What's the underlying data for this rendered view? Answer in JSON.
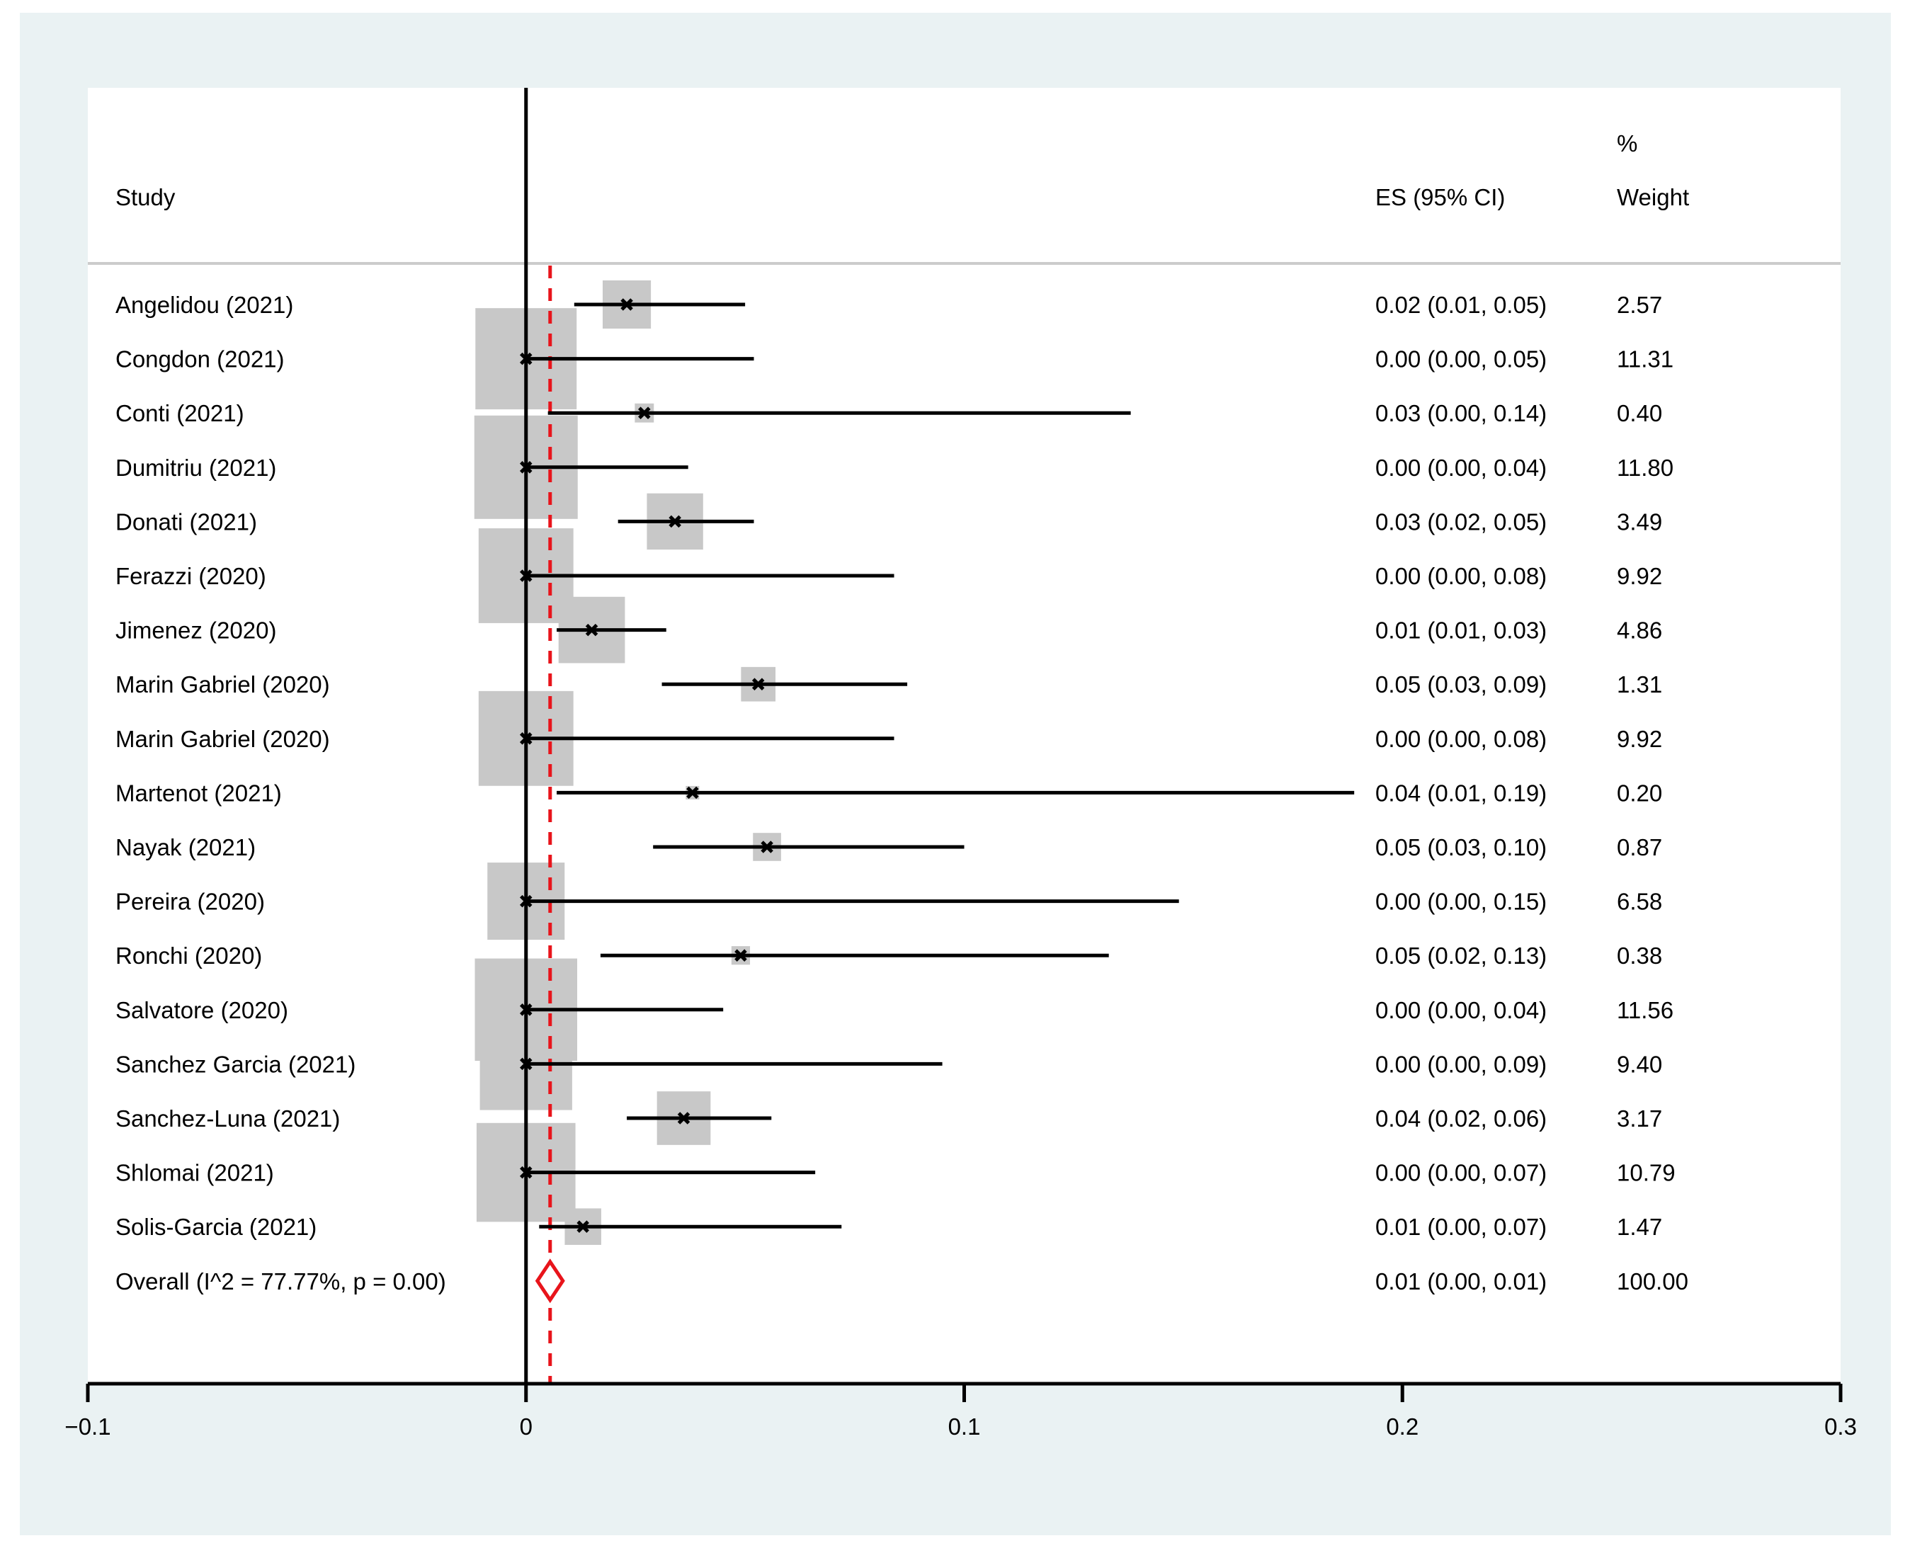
{
  "chart_data": {
    "type": "forest",
    "headers": {
      "study": "Study",
      "es": "ES (95% CI)",
      "weight_top": "%",
      "weight": "Weight"
    },
    "xlim": [
      -0.1,
      0.3
    ],
    "x_ticks": [
      -0.1,
      0,
      0.1,
      0.2,
      0.3
    ],
    "x_tick_labels": [
      "−0.1",
      "0",
      "0.1",
      "0.2",
      "0.3"
    ],
    "reference_line": 0,
    "overall_line": 0.0055,
    "grid": false,
    "studies": [
      {
        "label": "Angelidou  (2021)",
        "es": 0.023,
        "lo": 0.011,
        "hi": 0.05,
        "weight": 2.57,
        "ci_text": "0.02 (0.01, 0.05)",
        "weight_text": "2.57"
      },
      {
        "label": "Congdon (2021)",
        "es": 0.0,
        "lo": 0.0,
        "hi": 0.052,
        "weight": 11.31,
        "ci_text": "0.00 (0.00, 0.05)",
        "weight_text": "11.31"
      },
      {
        "label": "Conti  (2021)",
        "es": 0.027,
        "lo": 0.005,
        "hi": 0.138,
        "weight": 0.4,
        "ci_text": "0.03 (0.00, 0.14)",
        "weight_text": "0.40"
      },
      {
        "label": "Dumitriu  (2021)",
        "es": 0.0,
        "lo": 0.0,
        "hi": 0.037,
        "weight": 11.8,
        "ci_text": "0.00 (0.00, 0.04)",
        "weight_text": "11.80"
      },
      {
        "label": "Donati  (2021)",
        "es": 0.034,
        "lo": 0.021,
        "hi": 0.052,
        "weight": 3.49,
        "ci_text": "0.03 (0.02, 0.05)",
        "weight_text": "3.49"
      },
      {
        "label": "Ferazzi  (2020)",
        "es": 0.0,
        "lo": 0.0,
        "hi": 0.084,
        "weight": 9.92,
        "ci_text": "0.00 (0.00, 0.08)",
        "weight_text": "9.92"
      },
      {
        "label": "Jimenez  (2020)",
        "es": 0.015,
        "lo": 0.007,
        "hi": 0.032,
        "weight": 4.86,
        "ci_text": "0.01 (0.01, 0.03)",
        "weight_text": "4.86"
      },
      {
        "label": "Marin Gabriel  (2020)",
        "es": 0.053,
        "lo": 0.031,
        "hi": 0.087,
        "weight": 1.31,
        "ci_text": "0.05 (0.03, 0.09)",
        "weight_text": "1.31"
      },
      {
        "label": "Marin Gabriel  (2020)",
        "es": 0.0,
        "lo": 0.0,
        "hi": 0.084,
        "weight": 9.92,
        "ci_text": "0.00 (0.00, 0.08)",
        "weight_text": "9.92"
      },
      {
        "label": "Martenot  (2021)",
        "es": 0.038,
        "lo": 0.007,
        "hi": 0.189,
        "weight": 0.2,
        "ci_text": "0.04 (0.01, 0.19)",
        "weight_text": "0.20"
      },
      {
        "label": "Nayak  (2021)",
        "es": 0.055,
        "lo": 0.029,
        "hi": 0.1,
        "weight": 0.87,
        "ci_text": "0.05 (0.03, 0.10)",
        "weight_text": "0.87"
      },
      {
        "label": "Pereira  (2020)",
        "es": 0.0,
        "lo": 0.0,
        "hi": 0.149,
        "weight": 6.58,
        "ci_text": "0.00 (0.00, 0.15)",
        "weight_text": "6.58"
      },
      {
        "label": "Ronchi  (2020)",
        "es": 0.049,
        "lo": 0.017,
        "hi": 0.133,
        "weight": 0.38,
        "ci_text": "0.05 (0.02, 0.13)",
        "weight_text": "0.38"
      },
      {
        "label": "Salvatore  (2020)",
        "es": 0.0,
        "lo": 0.0,
        "hi": 0.045,
        "weight": 11.56,
        "ci_text": "0.00 (0.00, 0.04)",
        "weight_text": "11.56"
      },
      {
        "label": "Sanchez Garcia  (2021)",
        "es": 0.0,
        "lo": 0.0,
        "hi": 0.095,
        "weight": 9.4,
        "ci_text": "0.00 (0.00, 0.09)",
        "weight_text": "9.40"
      },
      {
        "label": "Sanchez-Luna (2021)",
        "es": 0.036,
        "lo": 0.023,
        "hi": 0.056,
        "weight": 3.17,
        "ci_text": "0.04 (0.02, 0.06)",
        "weight_text": "3.17"
      },
      {
        "label": "Shlomai  (2021)",
        "es": 0.0,
        "lo": 0.0,
        "hi": 0.066,
        "weight": 10.79,
        "ci_text": "0.00 (0.00, 0.07)",
        "weight_text": "10.79"
      },
      {
        "label": "Solis-Garcia  (2021)",
        "es": 0.013,
        "lo": 0.003,
        "hi": 0.072,
        "weight": 1.47,
        "ci_text": "0.01 (0.00, 0.07)",
        "weight_text": "1.47"
      }
    ],
    "overall": {
      "label": "Overall  (I^2 = 77.77%, p = 0.00)",
      "es": 0.0055,
      "lo": 0.003,
      "hi": 0.009,
      "ci_text": "0.01 (0.00, 0.01)",
      "weight_text": "100.00"
    },
    "colors": {
      "outer_background": "#eaf2f3",
      "plot_background": "#ffffff",
      "weight_box": "#c8c8c8",
      "ci_line": "#000000",
      "overall_marker": "#e8141b",
      "overall_line": "#e8141b",
      "header_rule": "#cccccc"
    }
  }
}
